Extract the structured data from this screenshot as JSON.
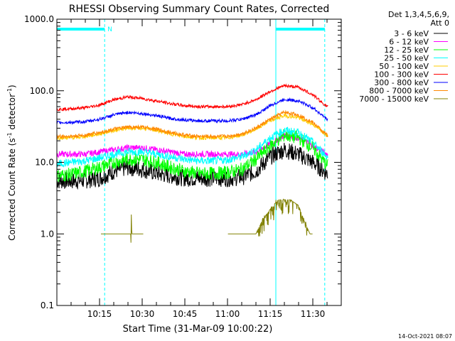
{
  "chart_data": {
    "type": "line",
    "title": "RHESSI Observing Summary Count Rates, Corrected",
    "xlabel": "Start Time (31-Mar-09 10:00:22)",
    "ylabel_main": "Corrected Count Rate (s",
    "ylabel_sup1": "-1",
    "ylabel_mid": " detector",
    "ylabel_sup2": "-1",
    "ylabel_end": ")",
    "y_scale": "log",
    "ylim": [
      0.1,
      1000
    ],
    "xlim_minutes": [
      0,
      100
    ],
    "x_ticks": [
      {
        "label": "10:15",
        "minute": 15
      },
      {
        "label": "10:30",
        "minute": 30
      },
      {
        "label": "10:45",
        "minute": 45
      },
      {
        "label": "11:00",
        "minute": 60
      },
      {
        "label": "11:15",
        "minute": 75
      },
      {
        "label": "11:30",
        "minute": 90
      }
    ],
    "y_ticks": [
      {
        "label": "1000.0",
        "value": 1000
      },
      {
        "label": "100.0",
        "value": 100
      },
      {
        "label": "10.0",
        "value": 10
      },
      {
        "label": "1.0",
        "value": 1
      },
      {
        "label": "0.1",
        "value": 0.1
      }
    ],
    "legend_header": [
      "Det 1,3,4,5,6,9,",
      "Att 0"
    ],
    "legend_position": "outside-right",
    "night_marker": "N",
    "footer_date": "14-Oct-2021 08:07",
    "vertical_markers_minutes": [
      {
        "minute": 0,
        "color": "#00ffff",
        "style": "solid"
      },
      {
        "minute": 16.8,
        "color": "#00ffff",
        "style": "dashed"
      },
      {
        "minute": 77,
        "color": "#00ffff",
        "style": "solid"
      },
      {
        "minute": 94.2,
        "color": "#00ffff",
        "style": "dashed"
      }
    ],
    "top_bars_minutes": [
      [
        0,
        16.8
      ],
      [
        77,
        94.2
      ]
    ],
    "series": [
      {
        "name": "3 - 6 keV",
        "color": "#000000",
        "x": [
          0,
          5,
          10,
          15,
          20,
          25,
          30,
          35,
          40,
          45,
          50,
          55,
          60,
          65,
          70,
          75,
          80,
          85,
          90,
          95
        ],
        "y": [
          5.5,
          5.5,
          5.6,
          6.0,
          7.5,
          8.5,
          8.0,
          7.0,
          6.5,
          6.0,
          6.0,
          6.0,
          6.0,
          6.2,
          7.5,
          12.0,
          15.0,
          13.0,
          10.0,
          7.0
        ]
      },
      {
        "name": "6 - 12 keV",
        "color": "#ff00ff",
        "x": [
          0,
          5,
          10,
          15,
          20,
          25,
          30,
          35,
          40,
          45,
          50,
          55,
          60,
          65,
          70,
          75,
          80,
          85,
          90,
          95
        ],
        "y": [
          13,
          13,
          13,
          14,
          15,
          16,
          16,
          15,
          14,
          13,
          13,
          13,
          13,
          13,
          14,
          18,
          24,
          22,
          17,
          13
        ]
      },
      {
        "name": "12 - 25 keV",
        "color": "#00ff00",
        "x": [
          0,
          5,
          10,
          15,
          20,
          25,
          30,
          35,
          40,
          45,
          50,
          55,
          60,
          65,
          70,
          75,
          80,
          85,
          90,
          95
        ],
        "y": [
          6.5,
          6.8,
          7.5,
          8.5,
          10,
          11,
          11,
          10,
          8.5,
          7.5,
          7.0,
          7.0,
          7.2,
          8,
          11,
          17,
          24,
          22,
          16,
          9
        ]
      },
      {
        "name": "25 - 50 keV",
        "color": "#00ffff",
        "x": [
          0,
          5,
          10,
          15,
          20,
          25,
          30,
          35,
          40,
          45,
          50,
          55,
          60,
          65,
          70,
          75,
          80,
          85,
          90,
          95
        ],
        "y": [
          9.5,
          10,
          10.5,
          11.5,
          13,
          14,
          14,
          13,
          12,
          11,
          10.5,
          10.5,
          10.8,
          12,
          15,
          22,
          28,
          26,
          19,
          12
        ]
      },
      {
        "name": "50 - 100 keV",
        "color": "#ffcc00",
        "x": [
          0,
          5,
          10,
          15,
          20,
          25,
          30,
          35,
          40,
          45,
          50,
          55,
          60,
          65,
          70,
          75,
          80,
          85,
          90,
          95
        ],
        "y": [
          22,
          22,
          23,
          25,
          28,
          30,
          30,
          28,
          25,
          23,
          22,
          22,
          22,
          24,
          29,
          38,
          45,
          42,
          34,
          24
        ]
      },
      {
        "name": "100 - 300 keV",
        "color": "#ff0000",
        "x": [
          0,
          5,
          10,
          15,
          20,
          25,
          30,
          35,
          40,
          45,
          50,
          55,
          60,
          65,
          70,
          75,
          80,
          85,
          90,
          95
        ],
        "y": [
          55,
          56,
          58,
          63,
          75,
          82,
          78,
          72,
          66,
          62,
          60,
          60,
          60,
          64,
          75,
          98,
          118,
          112,
          88,
          60
        ]
      },
      {
        "name": "300 - 800 keV",
        "color": "#0000ff",
        "x": [
          0,
          5,
          10,
          15,
          20,
          25,
          30,
          35,
          40,
          45,
          50,
          55,
          60,
          65,
          70,
          75,
          80,
          85,
          90,
          95
        ],
        "y": [
          36,
          36,
          37,
          40,
          46,
          50,
          48,
          45,
          41,
          39,
          38,
          38,
          38,
          40,
          46,
          62,
          76,
          72,
          58,
          40
        ]
      },
      {
        "name": "800 - 7000 keV",
        "color": "#ff8800",
        "x": [
          0,
          5,
          10,
          15,
          20,
          25,
          30,
          35,
          40,
          45,
          50,
          55,
          60,
          65,
          70,
          75,
          80,
          85,
          90,
          95
        ],
        "y": [
          23,
          23,
          24,
          26,
          29,
          31,
          31,
          29,
          26,
          24,
          23,
          23,
          23,
          25,
          30,
          40,
          50,
          46,
          36,
          24
        ]
      },
      {
        "name": "7000 - 15000 keV",
        "color": "#808000",
        "x": [
          15.5,
          20,
          25,
          26,
          26.2,
          26.4,
          27,
          28,
          30,
          31,
          60,
          61,
          62,
          64,
          68,
          70,
          72,
          76,
          78,
          82,
          85,
          87,
          89,
          90
        ],
        "y": [
          1.0,
          1.0,
          1.0,
          1.0,
          2.0,
          1.0,
          1.0,
          1.0,
          1.0,
          1.0,
          1.0,
          1.0,
          1.0,
          1.0,
          1.0,
          1.0,
          1.5,
          2.5,
          3.0,
          3.0,
          2.5,
          1.5,
          1.0,
          1.0
        ]
      }
    ]
  }
}
